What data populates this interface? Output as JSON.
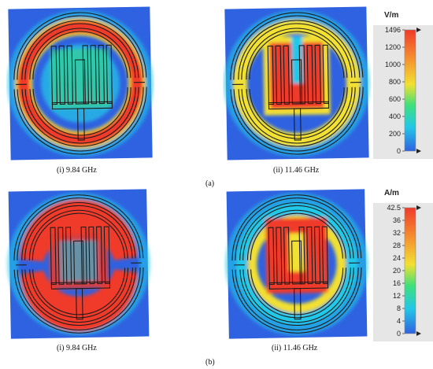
{
  "figure": {
    "row_a": {
      "label": "(a)",
      "panels": [
        {
          "caption": "(i) 9.84 GHz",
          "mode": "e1"
        },
        {
          "caption": "(ii) 11.46 GHz",
          "mode": "e2"
        }
      ],
      "scale": {
        "unit": "V/m",
        "max_label": "1496",
        "ticks": [
          "1496",
          "1200",
          "1000",
          "800",
          "600",
          "400",
          "200",
          "0"
        ]
      }
    },
    "row_b": {
      "label": "(b)",
      "panels": [
        {
          "caption": "(i) 9.84 GHz",
          "mode": "h1"
        },
        {
          "caption": "(ii) 11.46 GHz",
          "mode": "h2"
        }
      ],
      "scale": {
        "unit": "A/m",
        "max_label": "42.5",
        "ticks": [
          "42.5",
          "36",
          "32",
          "28",
          "24",
          "20",
          "16",
          "12",
          "8",
          "4",
          "0"
        ]
      }
    }
  },
  "colors": {
    "bg_blue": "#2f62e0",
    "cyan": "#22c8e8",
    "green": "#3ee07a",
    "yellow": "#f2e030",
    "red": "#f03a2a",
    "trace": "#1b1b1b"
  }
}
